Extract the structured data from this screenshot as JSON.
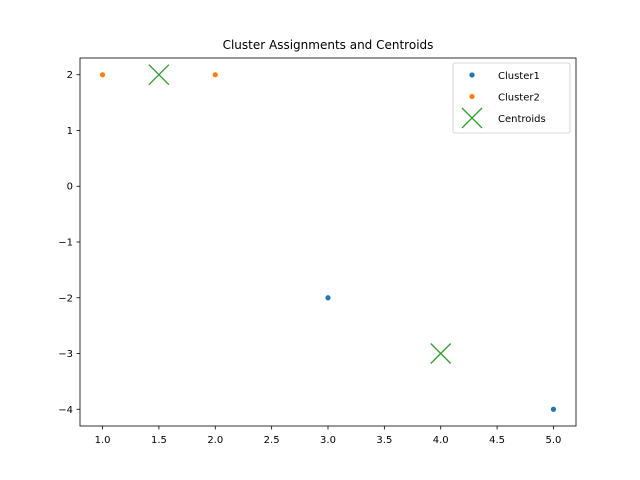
{
  "chart_data": {
    "type": "scatter",
    "title": "Cluster Assignments and Centroids",
    "xlabel": "",
    "ylabel": "",
    "xlim": [
      0.8,
      5.2
    ],
    "ylim": [
      -4.3,
      2.3
    ],
    "x_ticks": [
      1.0,
      1.5,
      2.0,
      2.5,
      3.0,
      3.5,
      4.0,
      4.5,
      5.0
    ],
    "x_tick_labels": [
      "1.0",
      "1.5",
      "2.0",
      "2.5",
      "3.0",
      "3.5",
      "4.0",
      "4.5",
      "5.0"
    ],
    "y_ticks": [
      2,
      1,
      0,
      -1,
      -2,
      -3,
      -4
    ],
    "y_tick_labels": [
      "2",
      "1",
      "0",
      "−1",
      "−2",
      "−3",
      "−4"
    ],
    "grid": false,
    "legend_placement": "upper-right",
    "series": [
      {
        "name": "Cluster1",
        "marker": "dot",
        "color": "#1f77b4",
        "points": [
          {
            "x": 3,
            "y": -2
          },
          {
            "x": 5,
            "y": -4
          }
        ]
      },
      {
        "name": "Cluster2",
        "marker": "dot",
        "color": "#ff7f0e",
        "points": [
          {
            "x": 1,
            "y": 2
          },
          {
            "x": 2,
            "y": 2
          }
        ]
      },
      {
        "name": "Centroids",
        "marker": "x",
        "color": "#2ca02c",
        "points": [
          {
            "x": 1.5,
            "y": 2
          },
          {
            "x": 4,
            "y": -3
          }
        ]
      }
    ]
  }
}
